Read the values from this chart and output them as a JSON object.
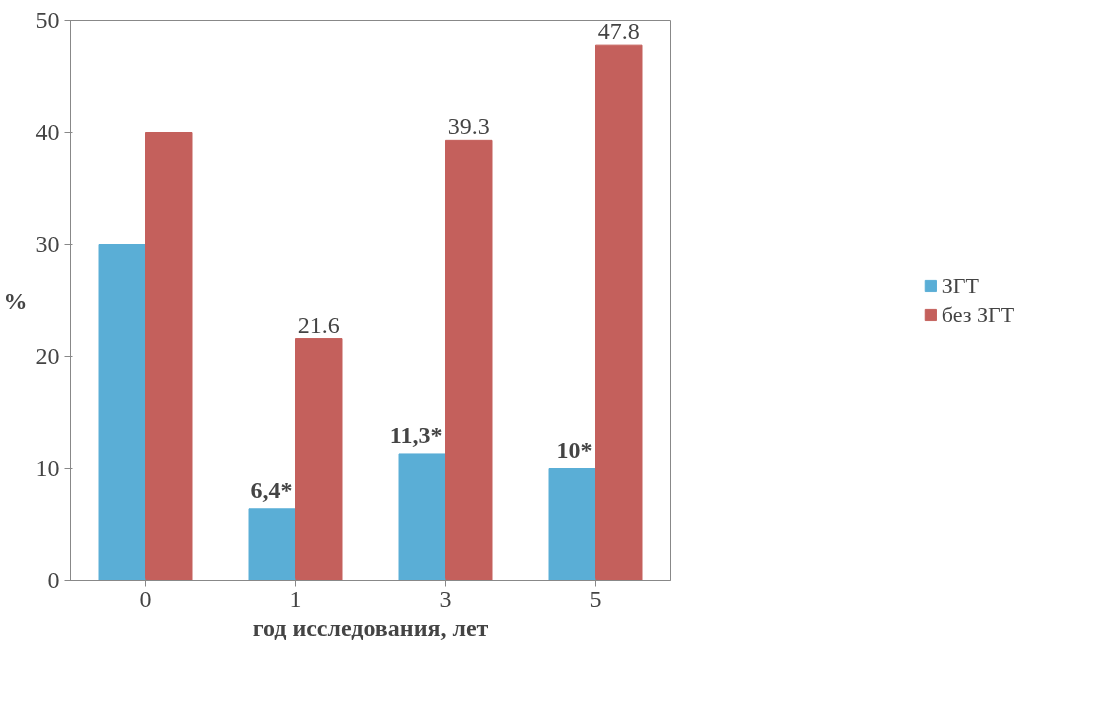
{
  "chart_data": {
    "type": "bar",
    "xlabel": "год исследования, лет",
    "ylabel": "%",
    "categories": [
      "0",
      "1",
      "3",
      "5"
    ],
    "series": [
      {
        "name": "ЗГТ",
        "color": "#5aaed6",
        "values": [
          30,
          6.4,
          11.3,
          10
        ],
        "value_labels": [
          null,
          "6,4*",
          "11,3*",
          "10*"
        ]
      },
      {
        "name": "без ЗГТ",
        "color": "#c4605c",
        "values": [
          40,
          21.6,
          39.3,
          47.8
        ],
        "value_labels": [
          null,
          "21.6",
          "39.3",
          "47.8"
        ]
      }
    ],
    "ylim": [
      0,
      50
    ],
    "yticks": [
      0,
      10,
      20,
      30,
      40,
      50
    ],
    "grid": false,
    "legend": "right"
  }
}
